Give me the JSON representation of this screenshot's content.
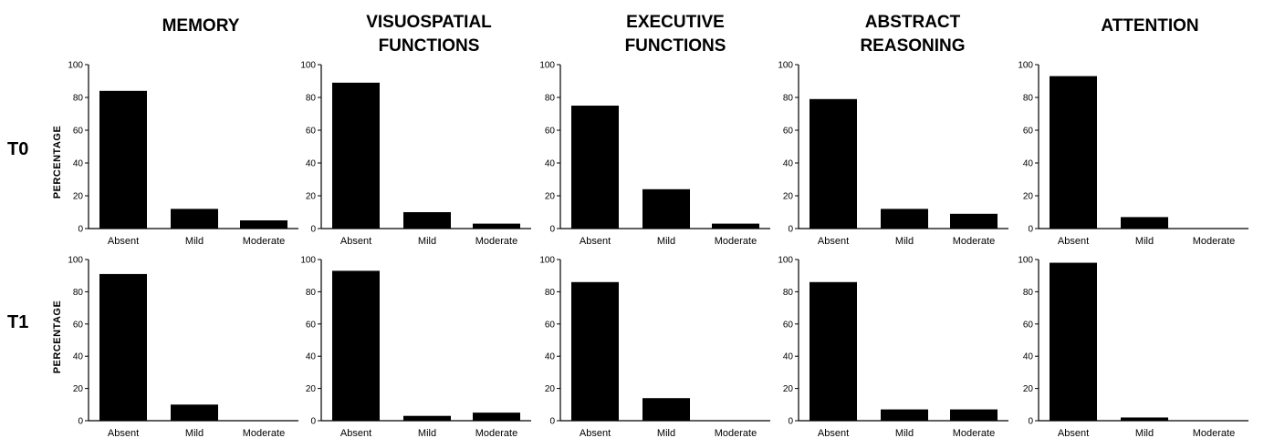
{
  "chart_data": [
    {
      "type": "bar",
      "title": "MEMORY",
      "row": "T0",
      "ylabel": "PERCENTAGE",
      "ylim": [
        0,
        100
      ],
      "yticks": [
        0,
        20,
        40,
        60,
        80,
        100
      ],
      "categories": [
        "Absent",
        "Mild",
        "Moderate"
      ],
      "values": [
        84,
        12,
        5
      ]
    },
    {
      "type": "bar",
      "title": "VISUOSPATIAL FUNCTIONS",
      "row": "T0",
      "ylabel": "",
      "ylim": [
        0,
        100
      ],
      "yticks": [
        0,
        20,
        40,
        60,
        80,
        100
      ],
      "categories": [
        "Absent",
        "Mild",
        "Moderate"
      ],
      "values": [
        89,
        10,
        3
      ]
    },
    {
      "type": "bar",
      "title": "EXECUTIVE FUNCTIONS",
      "row": "T0",
      "ylabel": "",
      "ylim": [
        0,
        100
      ],
      "yticks": [
        0,
        20,
        40,
        60,
        80,
        100
      ],
      "categories": [
        "Absent",
        "Mild",
        "Moderate"
      ],
      "values": [
        75,
        24,
        3
      ]
    },
    {
      "type": "bar",
      "title": "ABSTRACT REASONING",
      "row": "T0",
      "ylabel": "",
      "ylim": [
        0,
        100
      ],
      "yticks": [
        0,
        20,
        40,
        60,
        80,
        100
      ],
      "categories": [
        "Absent",
        "Mild",
        "Moderate"
      ],
      "values": [
        79,
        12,
        9
      ]
    },
    {
      "type": "bar",
      "title": "ATTENTION",
      "row": "T0",
      "ylabel": "",
      "ylim": [
        0,
        100
      ],
      "yticks": [
        0,
        20,
        40,
        60,
        80,
        100
      ],
      "categories": [
        "Absent",
        "Mild",
        "Moderate"
      ],
      "values": [
        93,
        7,
        0
      ]
    },
    {
      "type": "bar",
      "title": "MEMORY",
      "row": "T1",
      "ylabel": "PERCENTAGE",
      "ylim": [
        0,
        100
      ],
      "yticks": [
        0,
        20,
        40,
        60,
        80,
        100
      ],
      "categories": [
        "Absent",
        "Mild",
        "Moderate"
      ],
      "values": [
        91,
        10,
        0
      ]
    },
    {
      "type": "bar",
      "title": "VISUOSPATIAL FUNCTIONS",
      "row": "T1",
      "ylabel": "",
      "ylim": [
        0,
        100
      ],
      "yticks": [
        0,
        20,
        40,
        60,
        80,
        100
      ],
      "categories": [
        "Absent",
        "Mild",
        "Moderate"
      ],
      "values": [
        93,
        3,
        5
      ]
    },
    {
      "type": "bar",
      "title": "EXECUTIVE FUNCTIONS",
      "row": "T1",
      "ylabel": "",
      "ylim": [
        0,
        100
      ],
      "yticks": [
        0,
        20,
        40,
        60,
        80,
        100
      ],
      "categories": [
        "Absent",
        "Mild",
        "Moderate"
      ],
      "values": [
        86,
        14,
        0
      ]
    },
    {
      "type": "bar",
      "title": "ABSTRACT REASONING",
      "row": "T1",
      "ylabel": "",
      "ylim": [
        0,
        100
      ],
      "yticks": [
        0,
        20,
        40,
        60,
        80,
        100
      ],
      "categories": [
        "Absent",
        "Mild",
        "Moderate"
      ],
      "values": [
        86,
        7,
        7
      ]
    },
    {
      "type": "bar",
      "title": "ATTENTION",
      "row": "T1",
      "ylabel": "",
      "ylim": [
        0,
        100
      ],
      "yticks": [
        0,
        20,
        40,
        60,
        80,
        100
      ],
      "categories": [
        "Absent",
        "Mild",
        "Moderate"
      ],
      "values": [
        98,
        2,
        0
      ]
    }
  ],
  "columns": [
    {
      "title_lines": [
        "MEMORY"
      ]
    },
    {
      "title_lines": [
        "VISUOSPATIAL",
        "FUNCTIONS"
      ]
    },
    {
      "title_lines": [
        "EXECUTIVE",
        "FUNCTIONS"
      ]
    },
    {
      "title_lines": [
        "ABSTRACT",
        "REASONING"
      ]
    },
    {
      "title_lines": [
        "ATTENTION"
      ]
    }
  ],
  "rows": [
    {
      "label": "T0"
    },
    {
      "label": "T1"
    }
  ],
  "ylabel": "PERCENTAGE",
  "colors": {
    "bar": "#000000",
    "axis": "#000000",
    "background": "#ffffff"
  }
}
